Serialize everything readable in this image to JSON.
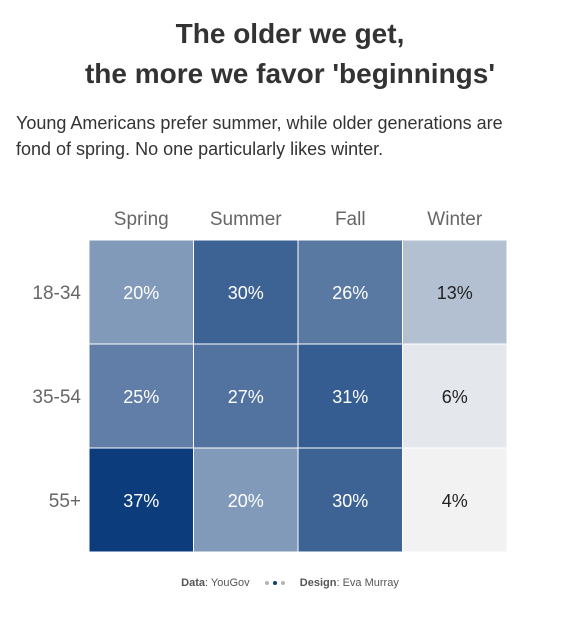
{
  "chart_data": {
    "type": "heatmap",
    "title": [
      "The older we get,",
      "the more we favor 'beginnings'"
    ],
    "subtitle": [
      "Young Americans prefer summer, while older generations are",
      "fond of spring. No one particularly likes winter."
    ],
    "columns": [
      "Spring",
      "Summer",
      "Fall",
      "Winter"
    ],
    "rows": [
      "18-34",
      "35-54",
      "55+"
    ],
    "values": [
      [
        20,
        30,
        26,
        13
      ],
      [
        25,
        27,
        31,
        6
      ],
      [
        37,
        20,
        30,
        4
      ]
    ],
    "value_suffix": "%",
    "color_scale": {
      "low": "#f2f2f2",
      "high": "#0c3c7c"
    }
  },
  "footer": {
    "data_label": "Data",
    "data_value": "YouGov",
    "design_label": "Design",
    "design_value": "Eva Murray",
    "dot_colors": [
      "#b5b5b5",
      "#0c3c7c",
      "#b5b5b5"
    ]
  }
}
